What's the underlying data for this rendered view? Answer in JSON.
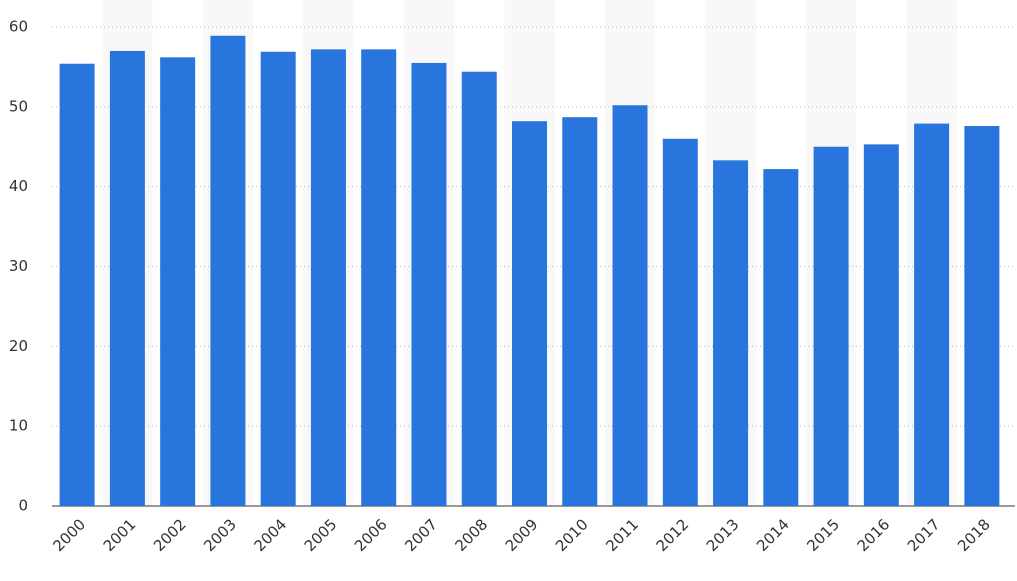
{
  "chart_data": {
    "type": "bar",
    "categories": [
      "2000",
      "2001",
      "2002",
      "2003",
      "2004",
      "2005",
      "2006",
      "2007",
      "2008",
      "2009",
      "2010",
      "2011",
      "2012",
      "2013",
      "2014",
      "2015",
      "2016",
      "2017",
      "2018"
    ],
    "values": [
      55.4,
      57.0,
      56.2,
      58.9,
      56.9,
      57.2,
      57.2,
      55.5,
      54.4,
      48.2,
      48.7,
      50.2,
      46.0,
      43.3,
      42.2,
      45.0,
      45.3,
      47.9,
      47.6
    ],
    "color": "#2876dd",
    "ylim": [
      0,
      60
    ],
    "yticks": [
      0,
      10,
      20,
      30,
      40,
      50,
      60
    ],
    "grid": true
  }
}
